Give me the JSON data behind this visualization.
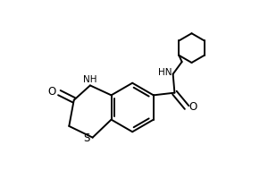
{
  "bg_color": "#ffffff",
  "line_color": "#000000",
  "lw": 1.4,
  "fig_width": 3.0,
  "fig_height": 2.0,
  "dpi": 100,
  "xlim": [
    -0.05,
    1.05
  ],
  "ylim": [
    -0.05,
    1.05
  ]
}
